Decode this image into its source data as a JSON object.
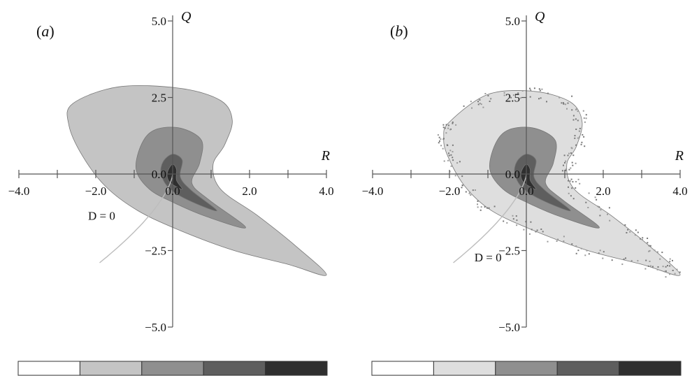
{
  "chart_data": [
    {
      "type": "contour",
      "panel_label": "(a)",
      "panel_letter": "a",
      "xlabel": "R",
      "ylabel": "Q",
      "xlim": [
        -4.0,
        4.0
      ],
      "ylim": [
        -5.0,
        5.0
      ],
      "x_ticks": [
        -4.0,
        -3.0,
        -2.0,
        -1.0,
        0.0,
        1.0,
        2.0,
        3.0,
        4.0
      ],
      "x_tick_labels": [
        {
          "value": -4.0,
          "text": "−4.0"
        },
        {
          "value": -2.0,
          "text": "−2.0"
        },
        {
          "value": 0.0,
          "text": "0.0"
        },
        {
          "value": 2.0,
          "text": "2.0"
        },
        {
          "value": 4.0,
          "text": "4.0"
        }
      ],
      "y_ticks": [
        -5.0,
        -2.5,
        0.0,
        2.5,
        5.0
      ],
      "y_tick_labels": [
        {
          "value": 5.0,
          "text": "5.0"
        },
        {
          "value": 2.5,
          "text": "2.5"
        },
        {
          "value": 0.0,
          "text": "0.0"
        },
        {
          "value": -2.5,
          "text": "−2.5"
        },
        {
          "value": -5.0,
          "text": "−5.0"
        }
      ],
      "curve_label": "D = 0",
      "curve_label_pos": [
        -2.2,
        -1.5
      ],
      "noisy_edge": false,
      "contour_levels": [
        {
          "level": 1,
          "color": "#c4c4c4",
          "points": [
            [
              -2.6,
              2.3
            ],
            [
              -1.4,
              2.85
            ],
            [
              0.2,
              2.8
            ],
            [
              1.25,
              2.4
            ],
            [
              1.55,
              1.75
            ],
            [
              1.35,
              0.95
            ],
            [
              1.05,
              0.3
            ],
            [
              1.25,
              -0.5
            ],
            [
              2.2,
              -1.35
            ],
            [
              3.2,
              -2.35
            ],
            [
              4.0,
              -3.3
            ],
            [
              3.0,
              -2.95
            ],
            [
              1.6,
              -2.5
            ],
            [
              0.2,
              -1.85
            ],
            [
              -0.9,
              -1.2
            ],
            [
              -1.75,
              -0.4
            ],
            [
              -2.35,
              0.6
            ],
            [
              -2.7,
              1.6
            ]
          ]
        },
        {
          "level": 2,
          "color": "#8f8f8f",
          "points": [
            [
              -0.8,
              1.0
            ],
            [
              -0.45,
              1.45
            ],
            [
              0.2,
              1.5
            ],
            [
              0.75,
              1.1
            ],
            [
              0.7,
              0.35
            ],
            [
              0.5,
              -0.3
            ],
            [
              0.95,
              -0.85
            ],
            [
              1.9,
              -1.75
            ],
            [
              0.9,
              -1.4
            ],
            [
              0.05,
              -0.95
            ],
            [
              -0.6,
              -0.5
            ],
            [
              -0.95,
              0.15
            ]
          ]
        },
        {
          "level": 3,
          "color": "#5e5e5e",
          "points": [
            [
              -0.25,
              0.4
            ],
            [
              0.0,
              0.65
            ],
            [
              0.25,
              0.45
            ],
            [
              0.2,
              -0.1
            ],
            [
              0.5,
              -0.55
            ],
            [
              1.15,
              -1.2
            ],
            [
              0.4,
              -0.85
            ],
            [
              -0.1,
              -0.45
            ],
            [
              -0.3,
              0.0
            ]
          ]
        },
        {
          "level": 4,
          "color": "#2f2f2f",
          "points": [
            [
              -0.12,
              0.12
            ],
            [
              0.0,
              0.32
            ],
            [
              0.1,
              0.15
            ],
            [
              0.1,
              -0.2
            ],
            [
              0.25,
              -0.5
            ],
            [
              -0.05,
              -0.3
            ],
            [
              -0.14,
              -0.1
            ]
          ]
        }
      ],
      "colorbar": [
        "#ffffff",
        "#c4c4c4",
        "#8f8f8f",
        "#5e5e5e",
        "#2f2f2f"
      ]
    },
    {
      "type": "contour",
      "panel_label": "(b)",
      "panel_letter": "b",
      "xlabel": "R",
      "ylabel": "Q",
      "xlim": [
        -4.0,
        4.0
      ],
      "ylim": [
        -5.0,
        5.0
      ],
      "x_ticks": [
        -4.0,
        -3.0,
        -2.0,
        -1.0,
        0.0,
        1.0,
        2.0,
        3.0,
        4.0
      ],
      "x_tick_labels": [
        {
          "value": -4.0,
          "text": "−4.0"
        },
        {
          "value": -2.0,
          "text": "−2.0"
        },
        {
          "value": 0.0,
          "text": "0.0"
        },
        {
          "value": 2.0,
          "text": "2.0"
        },
        {
          "value": 4.0,
          "text": "4.0"
        }
      ],
      "y_ticks": [
        -5.0,
        -2.5,
        0.0,
        2.5,
        5.0
      ],
      "y_tick_labels": [
        {
          "value": 5.0,
          "text": "5.0"
        },
        {
          "value": 2.5,
          "text": "2.5"
        },
        {
          "value": 0.0,
          "text": "0.0"
        },
        {
          "value": -2.5,
          "text": "−2.5"
        },
        {
          "value": -5.0,
          "text": "−5.0"
        }
      ],
      "curve_label": "D = 0",
      "curve_label_pos": [
        -1.35,
        -2.85
      ],
      "noisy_edge": true,
      "contour_levels": [
        {
          "level": 1,
          "color": "#dedede",
          "points": [
            [
              -2.0,
              1.7
            ],
            [
              -1.0,
              2.6
            ],
            [
              0.2,
              2.7
            ],
            [
              1.15,
              2.35
            ],
            [
              1.45,
              1.7
            ],
            [
              1.3,
              0.9
            ],
            [
              1.05,
              0.3
            ],
            [
              1.25,
              -0.5
            ],
            [
              2.2,
              -1.35
            ],
            [
              3.2,
              -2.35
            ],
            [
              4.0,
              -3.3
            ],
            [
              3.0,
              -2.95
            ],
            [
              1.6,
              -2.5
            ],
            [
              0.2,
              -1.85
            ],
            [
              -0.9,
              -1.2
            ],
            [
              -1.6,
              -0.4
            ],
            [
              -2.05,
              0.6
            ],
            [
              -2.15,
              1.2
            ]
          ]
        },
        {
          "level": 2,
          "color": "#8f8f8f",
          "points": [
            [
              -0.8,
              1.0
            ],
            [
              -0.45,
              1.45
            ],
            [
              0.2,
              1.5
            ],
            [
              0.75,
              1.1
            ],
            [
              0.7,
              0.35
            ],
            [
              0.5,
              -0.3
            ],
            [
              0.95,
              -0.85
            ],
            [
              1.9,
              -1.75
            ],
            [
              0.9,
              -1.4
            ],
            [
              0.05,
              -0.95
            ],
            [
              -0.6,
              -0.5
            ],
            [
              -0.95,
              0.15
            ]
          ]
        },
        {
          "level": 3,
          "color": "#5e5e5e",
          "points": [
            [
              -0.25,
              0.4
            ],
            [
              0.0,
              0.65
            ],
            [
              0.25,
              0.45
            ],
            [
              0.2,
              -0.1
            ],
            [
              0.5,
              -0.55
            ],
            [
              1.15,
              -1.2
            ],
            [
              0.4,
              -0.85
            ],
            [
              -0.1,
              -0.45
            ],
            [
              -0.3,
              0.0
            ]
          ]
        },
        {
          "level": 4,
          "color": "#2f2f2f",
          "points": [
            [
              -0.12,
              0.12
            ],
            [
              0.0,
              0.32
            ],
            [
              0.1,
              0.15
            ],
            [
              0.1,
              -0.2
            ],
            [
              0.25,
              -0.5
            ],
            [
              -0.05,
              -0.3
            ],
            [
              -0.14,
              -0.1
            ]
          ]
        }
      ],
      "colorbar": [
        "#ffffff",
        "#dedede",
        "#8f8f8f",
        "#5e5e5e",
        "#2f2f2f"
      ]
    }
  ]
}
